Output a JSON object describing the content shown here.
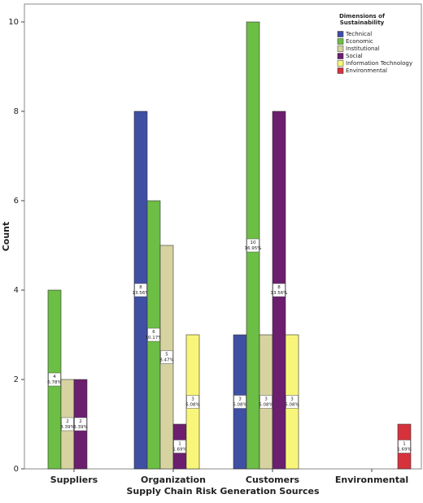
{
  "chart_data": {
    "type": "bar",
    "x_label": "Supply Chain Risk Generation Sources",
    "y_label": "Count",
    "legend_title": [
      "Dimensions of",
      "Sustainability"
    ],
    "legend_position": "upper right",
    "categories": [
      "Suppliers",
      "Organization",
      "Customers",
      "Environmental"
    ],
    "series": [
      {
        "name": "Technical",
        "color": "#3f4fa4",
        "values": [
          null,
          8,
          3,
          null
        ],
        "percent_labels": [
          null,
          "13.56%",
          "5.08%",
          null
        ]
      },
      {
        "name": "Economic",
        "color": "#6cbe45",
        "values": [
          4,
          6,
          10,
          null
        ],
        "percent_labels": [
          "6.78%",
          "10.17%",
          "16.95%",
          null
        ]
      },
      {
        "name": "Institutional",
        "color": "#d6d3a0",
        "values": [
          2,
          5,
          3,
          null
        ],
        "percent_labels": [
          "3.39%",
          "8.47%",
          "5.08%",
          null
        ]
      },
      {
        "name": "Social",
        "color": "#6b1f6e",
        "values": [
          2,
          1,
          8,
          null
        ],
        "percent_labels": [
          "3.39%",
          "1.69%",
          "13.56%",
          null
        ]
      },
      {
        "name": "Information Technology",
        "color": "#f8f67a",
        "values": [
          null,
          3,
          3,
          null
        ],
        "percent_labels": [
          null,
          "5.08%",
          "5.08%",
          null
        ]
      },
      {
        "name": "Environmental",
        "color": "#d6323c",
        "values": [
          null,
          null,
          null,
          1
        ],
        "percent_labels": [
          null,
          null,
          null,
          "1.69%"
        ]
      }
    ],
    "ylim": [
      0,
      10.4
    ],
    "yticks": [
      0,
      2,
      4,
      6,
      8,
      10
    ]
  }
}
